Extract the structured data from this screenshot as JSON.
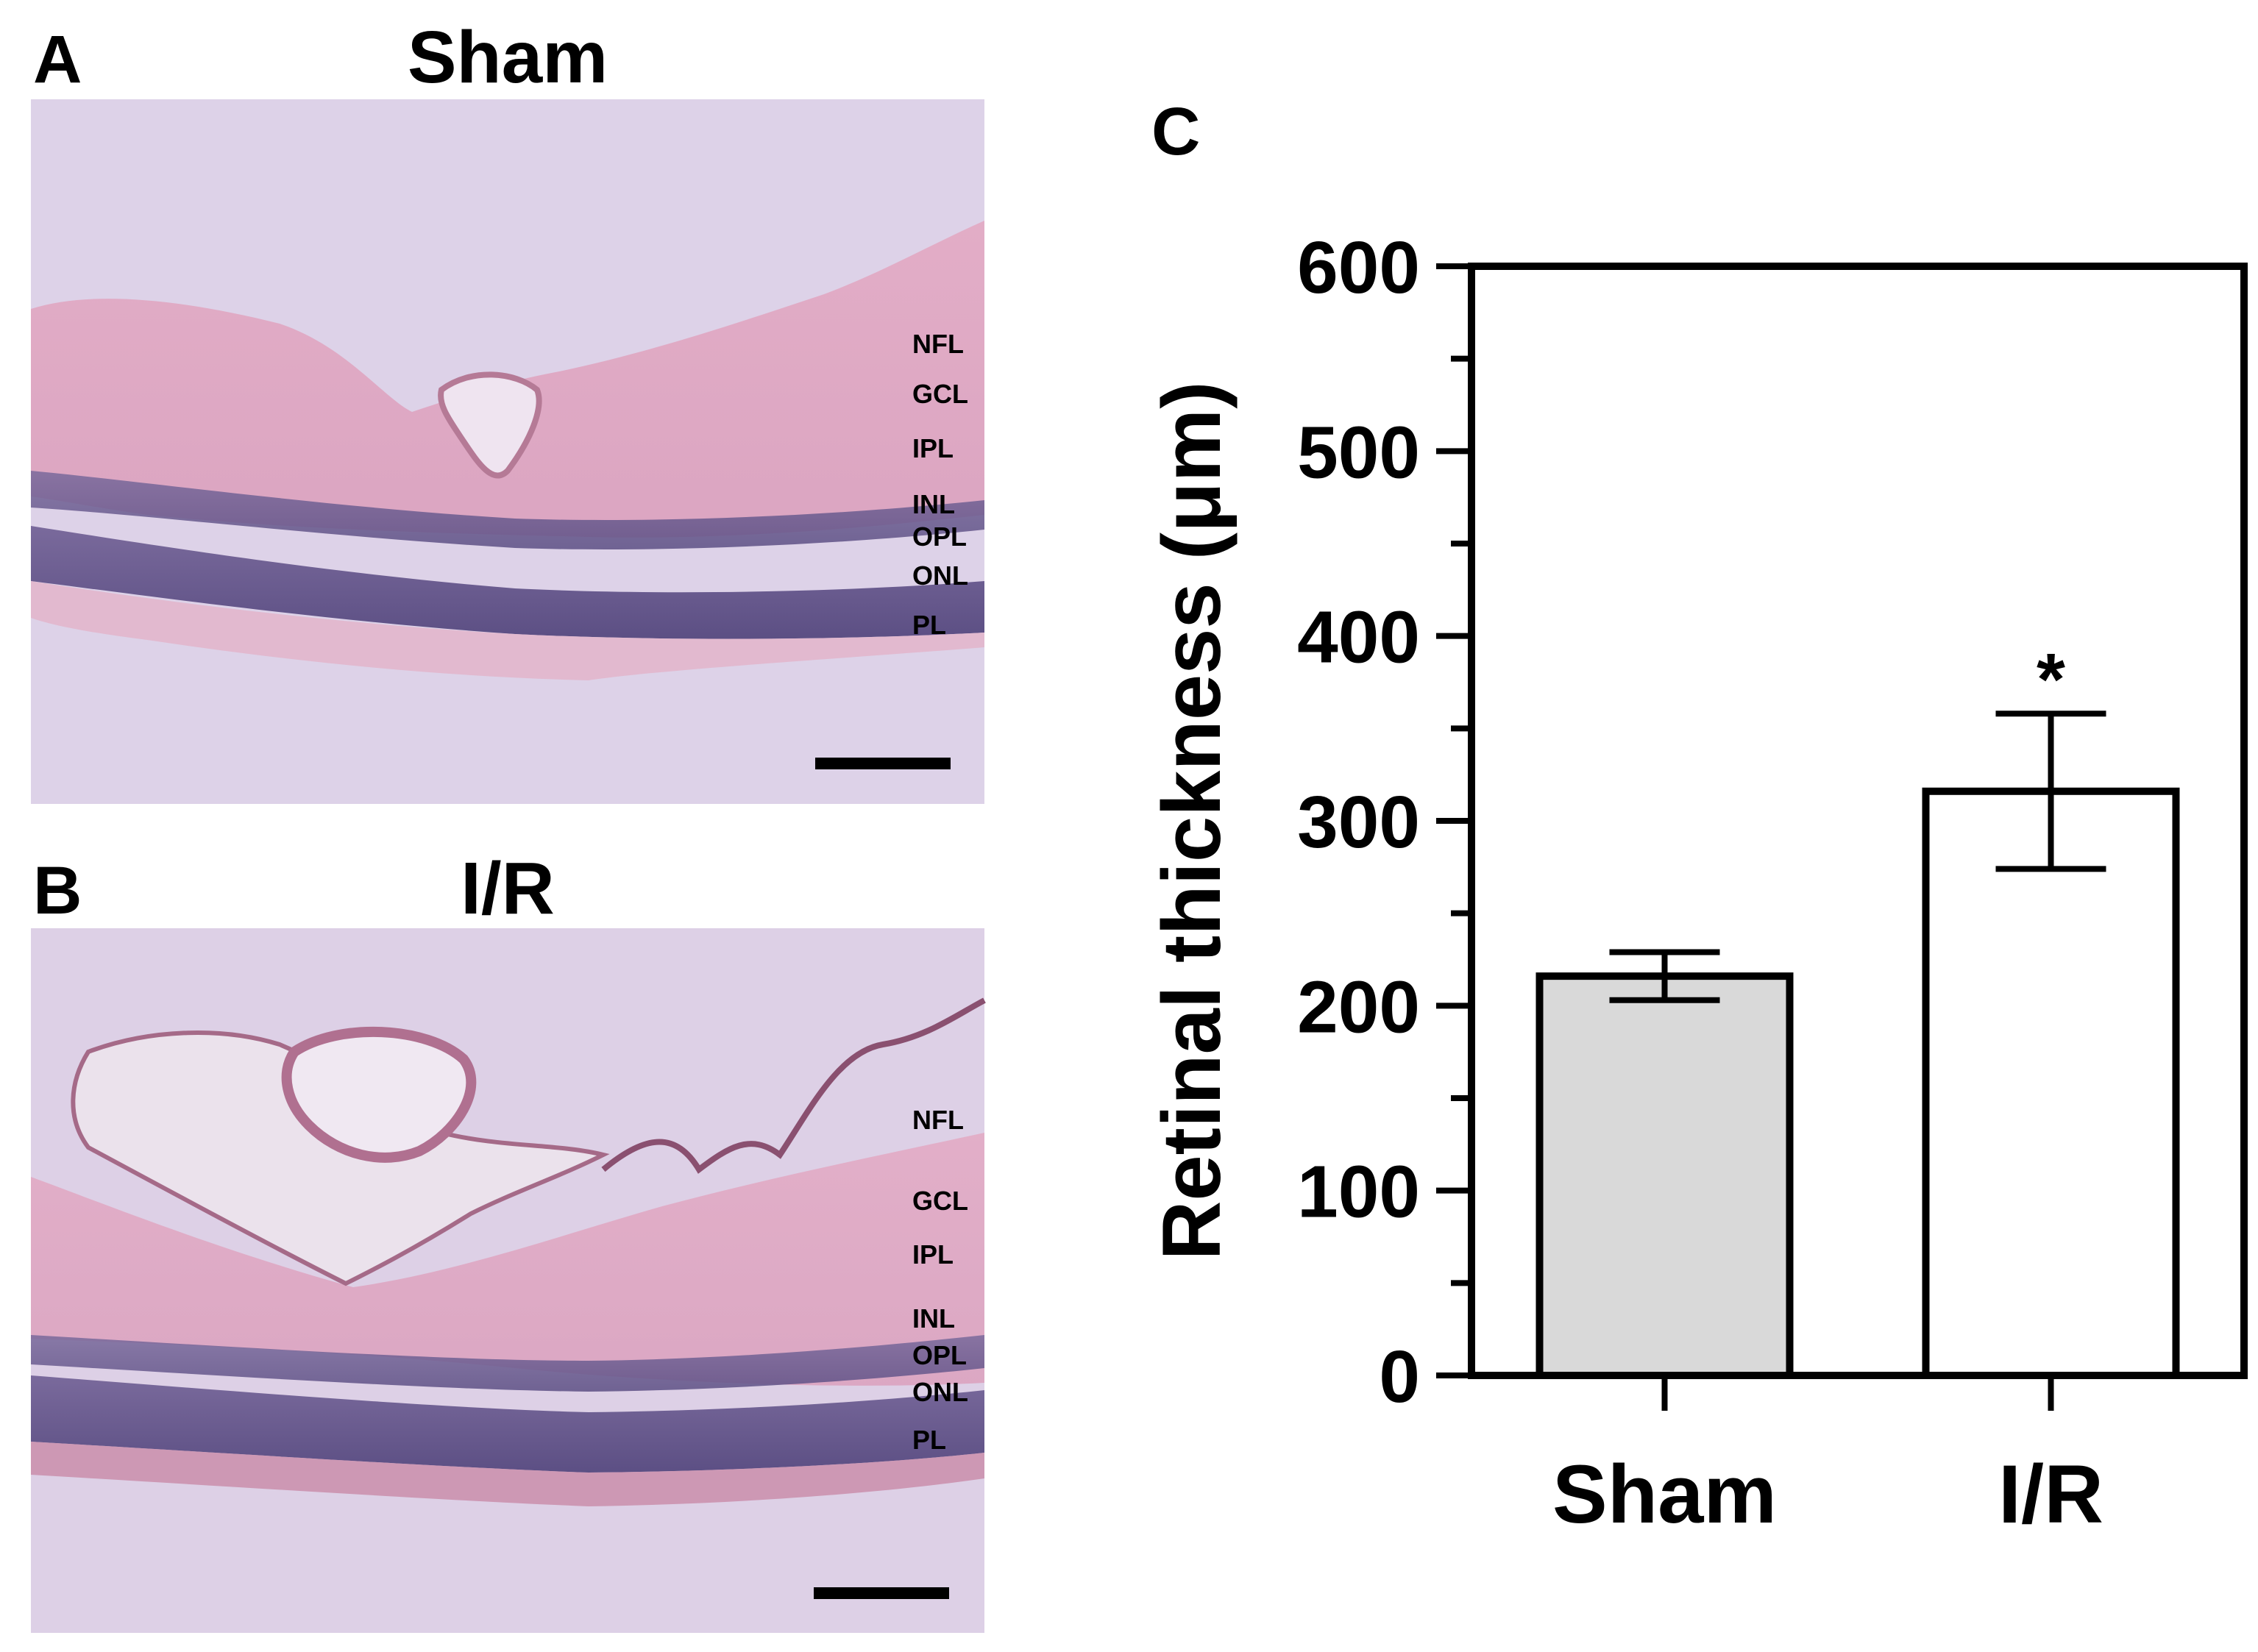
{
  "panels": {
    "a": {
      "letter": "A",
      "title": "Sham",
      "layers": [
        "NFL",
        "GCL",
        "IPL",
        "INL",
        "OPL",
        "ONL",
        "PL"
      ]
    },
    "b": {
      "letter": "B",
      "title": "I/R",
      "layers": [
        "NFL",
        "GCL",
        "IPL",
        "INL",
        "OPL",
        "ONL",
        "PL"
      ]
    },
    "c": {
      "letter": "C"
    }
  },
  "colors": {
    "tissue_bg": "#ddd0e6",
    "sham_bar": "#d9d9d9",
    "ir_bar": "#ffffff",
    "ink": "#000000"
  },
  "chart_data": {
    "type": "bar",
    "categories": [
      "Sham",
      "I/R"
    ],
    "values": [
      216,
      316
    ],
    "errors": [
      13,
      42
    ],
    "annotations": [
      "",
      "*"
    ],
    "title": "",
    "xlabel": "",
    "ylabel": "Retinal thickness (μm)",
    "ylim": [
      0,
      600
    ],
    "yticks": [
      0,
      100,
      200,
      300,
      400,
      500,
      600
    ],
    "y_minor_step": 50,
    "grid": false
  }
}
